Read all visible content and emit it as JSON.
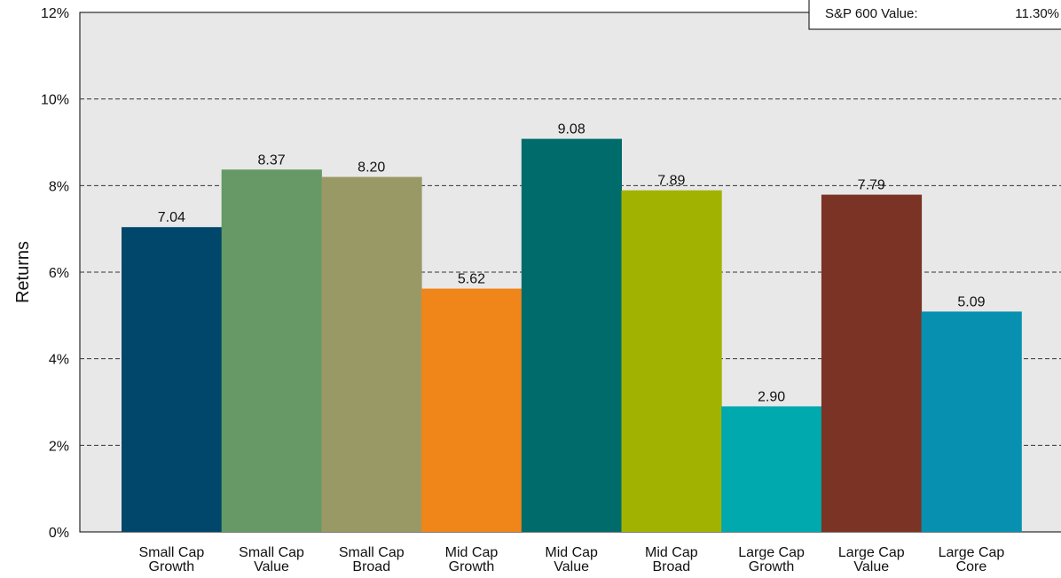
{
  "chart_data": {
    "type": "bar",
    "title": "",
    "xlabel": "",
    "ylabel": "Returns",
    "ylim": [
      0,
      12
    ],
    "yticks": [
      0,
      2,
      4,
      6,
      8,
      10,
      12
    ],
    "ytick_labels": [
      "0%",
      "2%",
      "4%",
      "6%",
      "8%",
      "10%",
      "12%"
    ],
    "grid": "horizontal-dashed",
    "background_color": "#e8e8e8",
    "categories": [
      [
        "Small Cap",
        "Growth"
      ],
      [
        "Small Cap",
        "Value"
      ],
      [
        "Small Cap",
        "Broad"
      ],
      [
        "Mid Cap",
        "Growth"
      ],
      [
        "Mid Cap",
        "Value"
      ],
      [
        "Mid Cap",
        "Broad"
      ],
      [
        "Large Cap",
        "Growth"
      ],
      [
        "Large Cap",
        "Value"
      ],
      [
        "Large Cap",
        "Core"
      ]
    ],
    "values": [
      7.04,
      8.37,
      8.2,
      5.62,
      9.08,
      7.89,
      2.9,
      7.79,
      5.09
    ],
    "value_labels": [
      "7.04",
      "8.37",
      "8.20",
      "5.62",
      "9.08",
      "7.89",
      "2.90",
      "7.79",
      "5.09"
    ],
    "colors": [
      "#00476b",
      "#669966",
      "#999966",
      "#f08519",
      "#006b6b",
      "#a1b300",
      "#00a9ae",
      "#7a3324",
      "#0890b0"
    ],
    "annotations": [
      {
        "label": "S&P 600 Value:",
        "value": "11.30%",
        "placement": "top-right"
      }
    ]
  }
}
